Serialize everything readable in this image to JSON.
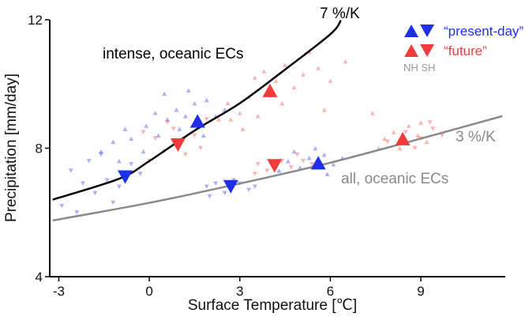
{
  "chart_data": {
    "type": "scatter",
    "xlabel": "Surface Temperature [℃]",
    "ylabel": "Precipitation [mm/day]",
    "xlim": [
      -3.3,
      11.8
    ],
    "ylim": [
      4,
      12
    ],
    "xticks": [
      -3,
      0,
      3,
      6,
      9
    ],
    "yticks": [
      4,
      8,
      12
    ],
    "grid": false,
    "legend_position": "top-right",
    "legend": {
      "present_label": "“present-day”",
      "future_label": "“future”",
      "hemispheres": "NH SH",
      "colors": {
        "present": "#1f2fe6",
        "future": "#f23b3b"
      }
    },
    "annotations": {
      "curve_7": "7 %/K",
      "curve_3": "3 %/K",
      "intense": "intense, oceanic ECs",
      "all": "all, oceanic ECs"
    },
    "curves": [
      {
        "label": "7 %/K",
        "color": "#000000",
        "points": [
          [
            -3.2,
            6.4
          ],
          [
            -1,
            7.05
          ],
          [
            0,
            7.6
          ],
          [
            1.5,
            8.55
          ],
          [
            3,
            9.4
          ],
          [
            4.5,
            10.45
          ],
          [
            6.0,
            11.55
          ],
          [
            6.35,
            11.98
          ]
        ]
      },
      {
        "label": "3 %/K",
        "color": "#8a8a8a",
        "points": [
          [
            -3.2,
            5.75
          ],
          [
            0,
            6.3
          ],
          [
            3,
            6.9
          ],
          [
            6,
            7.55
          ],
          [
            9,
            8.3
          ],
          [
            11.7,
            9.0
          ]
        ]
      }
    ],
    "series": [
      {
        "name": "“present-day”",
        "hemisphere": "NH",
        "marker": "triangle-up",
        "color": "#1f2fe6",
        "points": [
          [
            1.6,
            8.85
          ],
          [
            5.6,
            7.55
          ]
        ]
      },
      {
        "name": "“present-day”",
        "hemisphere": "SH",
        "marker": "triangle-down",
        "color": "#1f2fe6",
        "points": [
          [
            -0.8,
            7.1
          ],
          [
            2.7,
            6.8
          ]
        ]
      },
      {
        "name": "“future”",
        "hemisphere": "NH",
        "marker": "triangle-up",
        "color": "#f23b3b",
        "points": [
          [
            4.0,
            9.8
          ],
          [
            8.4,
            8.3
          ]
        ]
      },
      {
        "name": "“future”",
        "hemisphere": "SH",
        "marker": "triangle-down",
        "color": "#f23b3b",
        "points": [
          [
            0.95,
            8.1
          ],
          [
            4.15,
            7.45
          ]
        ]
      }
    ],
    "small_points": {
      "present_up": [
        [
          -1.6,
          7.9
        ],
        [
          -1.2,
          8.2
        ],
        [
          -0.6,
          8.3
        ],
        [
          -0.2,
          7.9
        ],
        [
          0.3,
          8.4
        ],
        [
          0.6,
          8.9
        ],
        [
          0.9,
          9.2
        ],
        [
          1.2,
          9.0
        ],
        [
          1.5,
          9.4
        ],
        [
          1.9,
          9.5
        ],
        [
          2.2,
          9.0
        ],
        [
          0.5,
          9.7
        ],
        [
          1.0,
          8.6
        ],
        [
          -0.1,
          8.7
        ],
        [
          -1.0,
          7.6
        ],
        [
          1.8,
          8.4
        ],
        [
          0.2,
          9.1
        ],
        [
          -0.8,
          8.6
        ],
        [
          2.5,
          9.2
        ],
        [
          1.3,
          9.8
        ],
        [
          4.6,
          7.6
        ],
        [
          5.0,
          7.4
        ],
        [
          5.3,
          7.7
        ],
        [
          5.8,
          7.8
        ],
        [
          6.1,
          7.5
        ],
        [
          4.8,
          7.9
        ],
        [
          5.5,
          8.0
        ],
        [
          6.4,
          7.7
        ],
        [
          4.3,
          7.3
        ],
        [
          5.9,
          7.2
        ]
      ],
      "present_down": [
        [
          -2.6,
          7.3
        ],
        [
          -2.2,
          6.9
        ],
        [
          -1.8,
          6.6
        ],
        [
          -1.4,
          7.0
        ],
        [
          -1.0,
          6.8
        ],
        [
          -0.6,
          7.5
        ],
        [
          -2.9,
          6.2
        ],
        [
          -2.0,
          7.6
        ],
        [
          -0.3,
          7.2
        ],
        [
          -1.2,
          6.3
        ],
        [
          1.9,
          6.8
        ],
        [
          2.2,
          6.9
        ],
        [
          2.5,
          6.6
        ],
        [
          3.0,
          6.9
        ],
        [
          3.3,
          6.7
        ],
        [
          2.0,
          6.5
        ],
        [
          2.8,
          7.0
        ],
        [
          3.5,
          6.8
        ],
        [
          -2.4,
          6.0
        ],
        [
          -1.6,
          7.8
        ]
      ],
      "future_up": [
        [
          2.3,
          8.9
        ],
        [
          2.6,
          9.4
        ],
        [
          3.0,
          9.1
        ],
        [
          3.3,
          9.6
        ],
        [
          3.5,
          10.2
        ],
        [
          3.8,
          10.4
        ],
        [
          4.2,
          10.1
        ],
        [
          4.5,
          10.6
        ],
        [
          4.8,
          9.9
        ],
        [
          5.1,
          10.3
        ],
        [
          5.3,
          11.0
        ],
        [
          5.6,
          10.5
        ],
        [
          6.0,
          10.1
        ],
        [
          4.4,
          9.4
        ],
        [
          3.1,
          8.6
        ],
        [
          2.7,
          8.9
        ],
        [
          5.8,
          9.2
        ],
        [
          6.5,
          10.7
        ],
        [
          7.4,
          9.1
        ],
        [
          3.6,
          9.0
        ],
        [
          7.8,
          8.3
        ],
        [
          8.1,
          8.5
        ],
        [
          8.6,
          8.7
        ],
        [
          8.9,
          8.4
        ],
        [
          9.2,
          8.2
        ],
        [
          8.3,
          8.0
        ],
        [
          7.6,
          8.0
        ],
        [
          9.0,
          8.8
        ]
      ],
      "future_down": [
        [
          0.2,
          8.3
        ],
        [
          0.5,
          7.9
        ],
        [
          0.8,
          8.6
        ],
        [
          1.2,
          7.8
        ],
        [
          1.5,
          8.4
        ],
        [
          1.9,
          8.9
        ],
        [
          0.0,
          7.6
        ],
        [
          0.6,
          8.8
        ],
        [
          1.7,
          8.0
        ],
        [
          -0.2,
          8.5
        ],
        [
          3.6,
          7.5
        ],
        [
          3.9,
          7.3
        ],
        [
          4.4,
          7.6
        ],
        [
          4.7,
          7.4
        ],
        [
          5.1,
          7.6
        ],
        [
          3.5,
          7.2
        ],
        [
          4.9,
          7.8
        ],
        [
          5.4,
          7.5
        ],
        [
          8.5,
          8.5
        ],
        [
          9.0,
          8.3
        ],
        [
          9.4,
          8.6
        ],
        [
          9.7,
          8.4
        ],
        [
          8.8,
          8.0
        ],
        [
          9.3,
          8.8
        ],
        [
          7.9,
          8.2
        ]
      ]
    }
  }
}
